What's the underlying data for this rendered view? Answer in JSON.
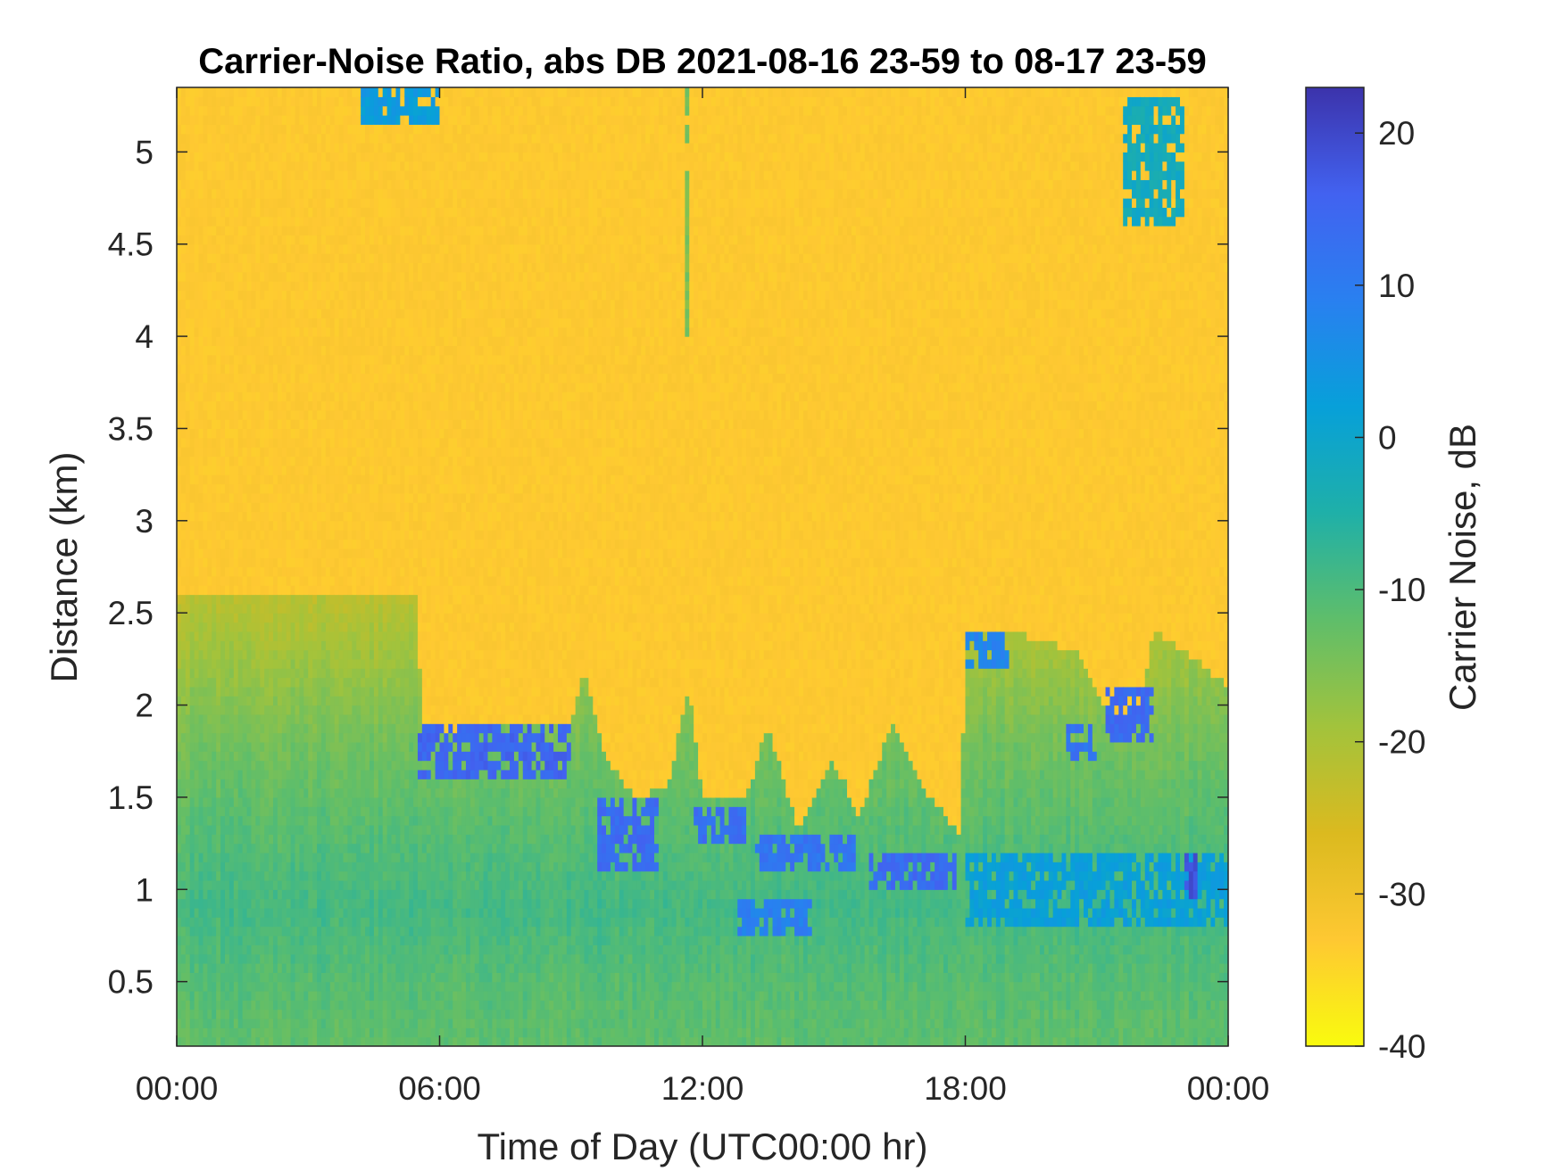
{
  "chart_data": {
    "type": "heatmap",
    "title": "Carrier-Noise Ratio, abs DB 2021-08-16 23-59 to 08-17 23-59",
    "xlabel": "Time of Day (UTC00:00 hr)",
    "ylabel": "Distance (km)",
    "colorbar_label": "Carrier Noise, dB",
    "colormap": "parula (reversed: yellow = low, dark blue = high)",
    "xlim_hours": [
      0,
      24
    ],
    "ylim_km": [
      0.15,
      5.35
    ],
    "clim_db": [
      -40,
      23
    ],
    "x_ticks": [
      {
        "hour": 0,
        "label": "00:00"
      },
      {
        "hour": 6,
        "label": "06:00"
      },
      {
        "hour": 12,
        "label": "12:00"
      },
      {
        "hour": 18,
        "label": "18:00"
      },
      {
        "hour": 24,
        "label": "00:00"
      }
    ],
    "y_ticks": [
      {
        "km": 0.5,
        "label": "0.5"
      },
      {
        "km": 1.0,
        "label": "1"
      },
      {
        "km": 1.5,
        "label": "1.5"
      },
      {
        "km": 2.0,
        "label": "2"
      },
      {
        "km": 2.5,
        "label": "2.5"
      },
      {
        "km": 3.0,
        "label": "3"
      },
      {
        "km": 3.5,
        "label": "3.5"
      },
      {
        "km": 4.0,
        "label": "4"
      },
      {
        "km": 4.5,
        "label": "4.5"
      },
      {
        "km": 5.0,
        "label": "5"
      }
    ],
    "colorbar_ticks": [
      {
        "db": 20,
        "label": "20"
      },
      {
        "db": 10,
        "label": "10"
      },
      {
        "db": 0,
        "label": "0"
      },
      {
        "db": -10,
        "label": "-10"
      },
      {
        "db": -20,
        "label": "-20"
      },
      {
        "db": -30,
        "label": "-30"
      },
      {
        "db": -40,
        "label": "-40"
      }
    ],
    "colormap_stops": [
      "#f9fb0e",
      "#fec832",
      "#dbba1f",
      "#a2c33c",
      "#5fbe6a",
      "#1fb0a8",
      "#07a0d9",
      "#2980f0",
      "#4262f0",
      "#3c33ab"
    ],
    "background_db": -33,
    "boundary_layer_top_km": [
      {
        "t": 0,
        "km": 2.6
      },
      {
        "t": 5.5,
        "km": 2.6
      },
      {
        "t": 5.6,
        "km": 1.85
      },
      {
        "t": 9.0,
        "km": 1.9
      },
      {
        "t": 9.3,
        "km": 2.2
      },
      {
        "t": 9.8,
        "km": 1.7
      },
      {
        "t": 10.5,
        "km": 1.5
      },
      {
        "t": 11.2,
        "km": 1.55
      },
      {
        "t": 11.7,
        "km": 2.1
      },
      {
        "t": 12.0,
        "km": 1.5
      },
      {
        "t": 13.0,
        "km": 1.5
      },
      {
        "t": 13.5,
        "km": 1.9
      },
      {
        "t": 14.2,
        "km": 1.3
      },
      {
        "t": 15.0,
        "km": 1.7
      },
      {
        "t": 15.6,
        "km": 1.4
      },
      {
        "t": 16.3,
        "km": 1.9
      },
      {
        "t": 17.2,
        "km": 1.5
      },
      {
        "t": 17.9,
        "km": 1.3
      },
      {
        "t": 18.0,
        "km": 2.4
      },
      {
        "t": 19.0,
        "km": 2.4
      },
      {
        "t": 20.5,
        "km": 2.3
      },
      {
        "t": 21.2,
        "km": 2.0
      },
      {
        "t": 21.8,
        "km": 1.8
      },
      {
        "t": 22.3,
        "km": 2.4
      },
      {
        "t": 23.0,
        "km": 2.3
      },
      {
        "t": 24.0,
        "km": 2.1
      }
    ],
    "low_layer": [
      {
        "km": 0.15,
        "db": -12
      },
      {
        "km": 0.5,
        "db": -11
      },
      {
        "km": 0.9,
        "db": -9
      },
      {
        "km": 1.3,
        "db": -11
      },
      {
        "km": 1.8,
        "db": -14
      },
      {
        "km": 2.6,
        "db": -22
      }
    ],
    "features": [
      {
        "t0": 5.5,
        "t1": 9.0,
        "km0": 1.6,
        "km1": 1.9,
        "db": 15
      },
      {
        "t0": 9.6,
        "t1": 11.0,
        "km0": 1.1,
        "km1": 1.5,
        "db": 14
      },
      {
        "t0": 11.8,
        "t1": 13.0,
        "km0": 1.25,
        "km1": 1.45,
        "db": 13
      },
      {
        "t0": 13.2,
        "t1": 15.5,
        "km0": 1.1,
        "km1": 1.3,
        "db": 12
      },
      {
        "t0": 15.8,
        "t1": 17.8,
        "km0": 1.0,
        "km1": 1.2,
        "db": 14
      },
      {
        "t0": 12.8,
        "t1": 14.5,
        "km0": 0.75,
        "km1": 0.95,
        "db": 9
      },
      {
        "t0": 18.0,
        "t1": 19.0,
        "km0": 2.2,
        "km1": 2.4,
        "db": 8
      },
      {
        "t0": 21.2,
        "t1": 22.3,
        "km0": 1.8,
        "km1": 2.1,
        "db": 14
      },
      {
        "t0": 20.3,
        "t1": 21.0,
        "km0": 1.7,
        "km1": 1.9,
        "db": 12
      },
      {
        "t0": 18.0,
        "t1": 24.0,
        "km0": 0.8,
        "km1": 1.2,
        "db": 2
      },
      {
        "t0": 4.2,
        "t1": 6.0,
        "km0": 5.15,
        "km1": 5.35,
        "db": 3
      },
      {
        "t0": 21.6,
        "t1": 23.0,
        "km0": 4.6,
        "km1": 5.3,
        "db": -2
      },
      {
        "t0": 11.6,
        "t1": 11.7,
        "km0": 4.0,
        "km1": 5.35,
        "db": -15
      },
      {
        "t0": 23.0,
        "t1": 23.3,
        "km0": 0.95,
        "km1": 1.2,
        "db": 18
      }
    ]
  }
}
